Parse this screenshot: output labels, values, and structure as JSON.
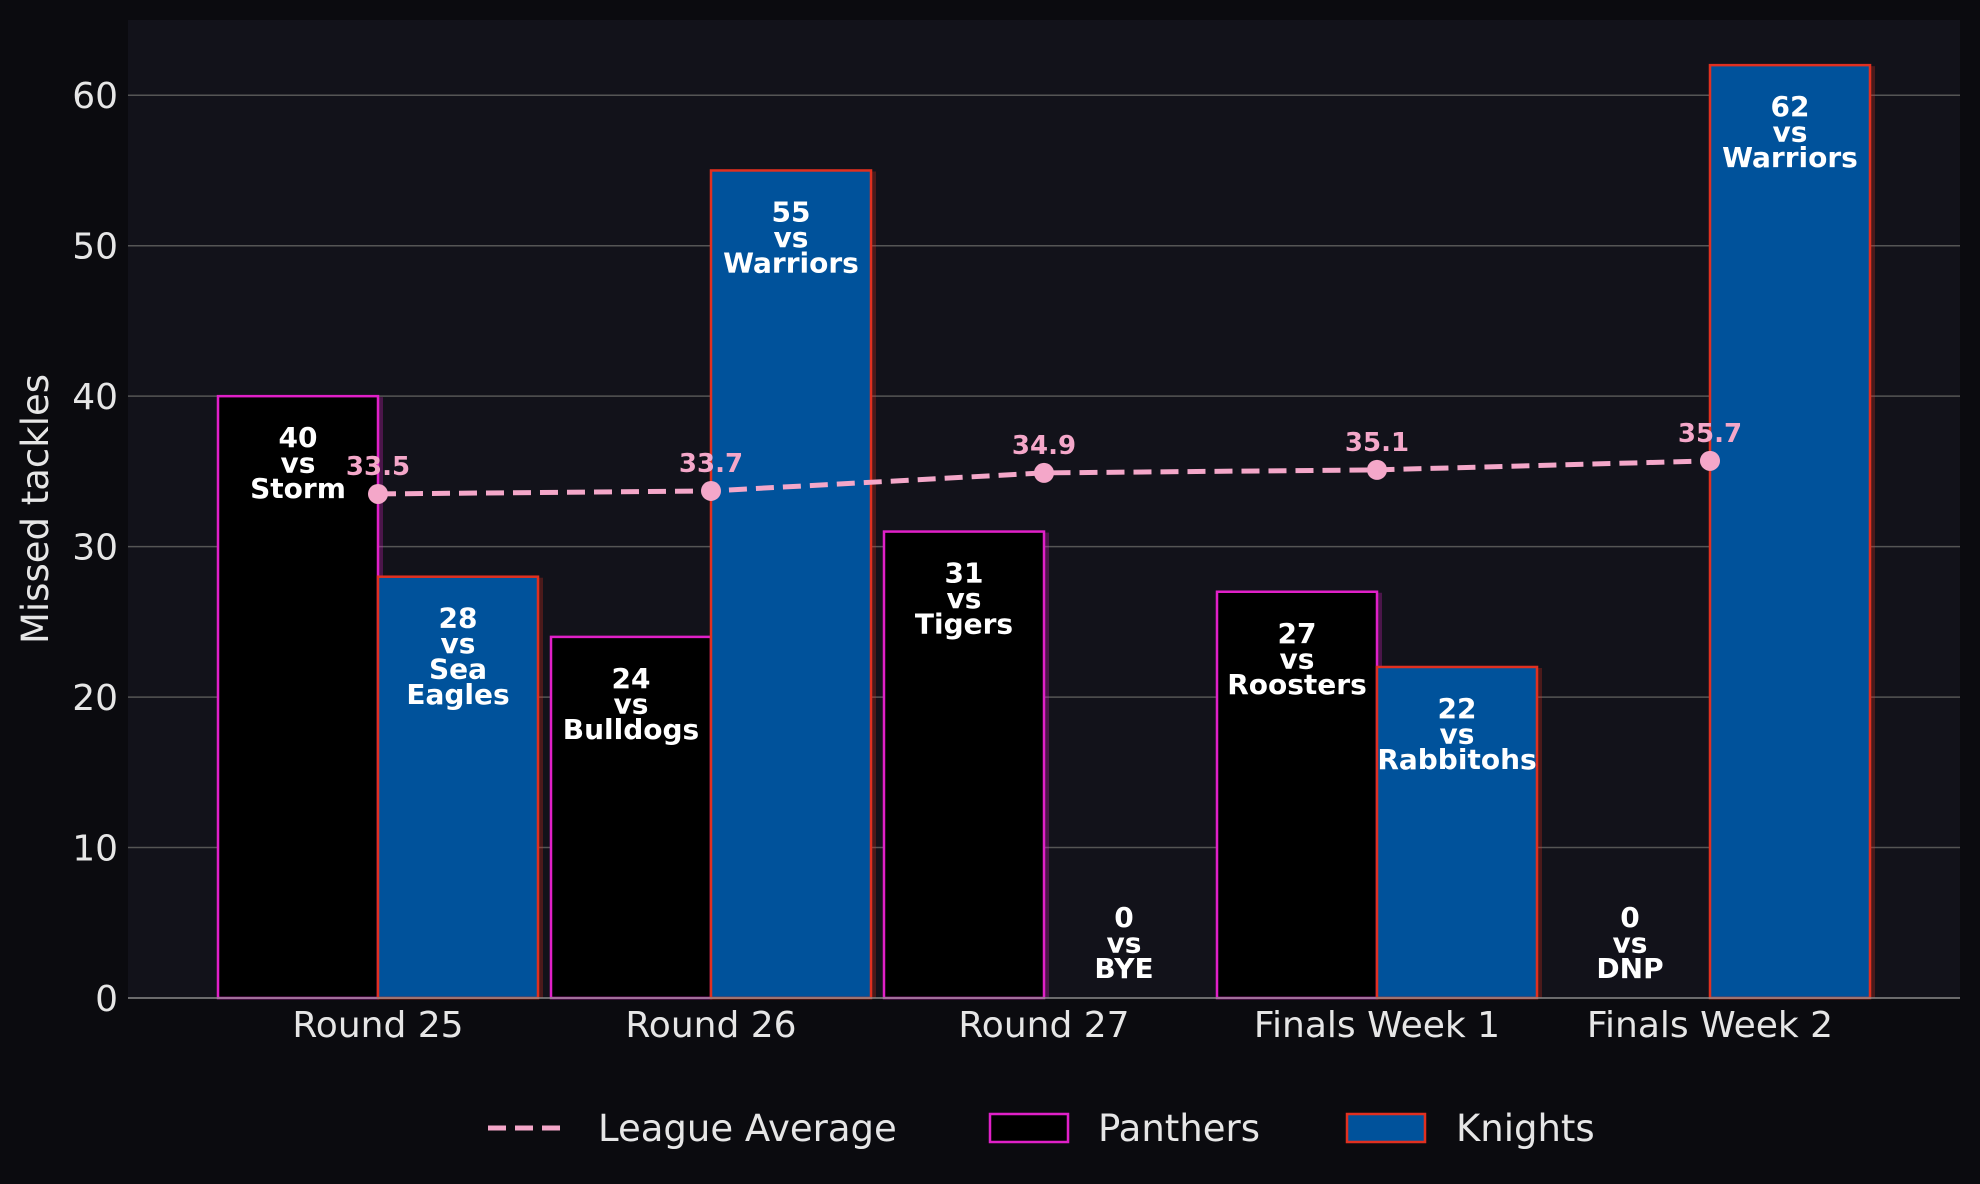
{
  "chart_data": {
    "type": "bar",
    "title": "",
    "xlabel": "",
    "ylabel": "Missed tackles",
    "ylim": [
      0,
      65
    ],
    "yticks": [
      0,
      10,
      20,
      30,
      40,
      50,
      60
    ],
    "grid": "horizontal",
    "legend_position": "bottom-center",
    "categories": [
      "Round 25",
      "Round 26",
      "Round 27",
      "Finals Week 1",
      "Finals Week 2"
    ],
    "series": [
      {
        "name": "Panthers",
        "type": "bar",
        "fill": "#000000",
        "edge": "#e020c8",
        "values": [
          40,
          24,
          31,
          27,
          0
        ],
        "opponents": [
          "Storm",
          "Bulldogs",
          "Tigers",
          "Roosters",
          "DNP"
        ]
      },
      {
        "name": "Knights",
        "type": "bar",
        "fill": "#00529b",
        "edge": "#e03020",
        "values": [
          28,
          55,
          0,
          22,
          62
        ],
        "opponents": [
          "Sea Eagles",
          "Warriors",
          "BYE",
          "Rabbitohs",
          "Warriors"
        ]
      },
      {
        "name": "League Average",
        "type": "line",
        "style": "dashed",
        "color": "#f4a7c9",
        "values": [
          33.5,
          33.7,
          34.9,
          35.1,
          35.7
        ],
        "labels": [
          "33.5",
          "33.7",
          "34.9",
          "35.1",
          "35.7"
        ]
      }
    ],
    "label_connector": "vs"
  },
  "colors": {
    "figure_bg": "#0b0b0f",
    "plot_bg": "#12121a",
    "grid": "#555555",
    "text": "#e6e6e6"
  }
}
